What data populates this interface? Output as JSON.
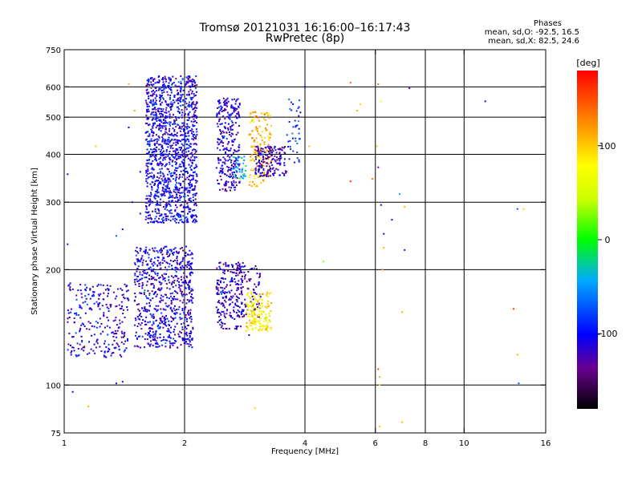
{
  "chart_data": {
    "type": "scatter",
    "title_line1": "Tromsø 20121031 16:16:00–16:17:43",
    "title_line2": "RwPretec (8p)",
    "stats": {
      "heading": "Phases",
      "line_o": "mean, sd,O: -92.5, 16.5",
      "line_x": "mean, sd,X:  82.5, 24.6"
    },
    "xlabel": "Frequency [MHz]",
    "ylabel": "Stationary phase Virtual Height [km]",
    "x_scale": "log",
    "y_scale": "log",
    "xlim": [
      1,
      16
    ],
    "ylim": [
      75,
      750
    ],
    "xticks": [
      1,
      2,
      4,
      6,
      8,
      10,
      16
    ],
    "xtick_labels": [
      "1",
      "2",
      "4",
      "6",
      "8",
      "10",
      "16"
    ],
    "yticks": [
      75,
      100,
      200,
      300,
      400,
      500,
      600,
      750
    ],
    "ytick_labels": [
      "75",
      "100",
      "200",
      "300",
      "400",
      "500",
      "600",
      "750"
    ],
    "grid_x": [
      2,
      4,
      6,
      8,
      10
    ],
    "grid_y": [
      100,
      200,
      300,
      400,
      500,
      600
    ],
    "grid": true,
    "colorbar": {
      "label": "[deg]",
      "range": [
        -180,
        180
      ],
      "ticks": [
        100,
        0,
        -100
      ],
      "tick_labels": [
        "100",
        "0",
        "-100"
      ]
    },
    "clusters": [
      {
        "f": [
          1.02,
          1.45
        ],
        "h": [
          118,
          185
        ],
        "phase": -110,
        "n": 260
      },
      {
        "f": [
          1.5,
          2.1
        ],
        "h": [
          125,
          230
        ],
        "phase": -110,
        "n": 700
      },
      {
        "f": [
          2.4,
          2.8
        ],
        "h": [
          140,
          210
        ],
        "phase": -115,
        "n": 200
      },
      {
        "f": [
          2.7,
          3.1
        ],
        "h": [
          150,
          205
        ],
        "phase": -125,
        "n": 90
      },
      {
        "f": [
          2.85,
          3.3
        ],
        "h": [
          138,
          175
        ],
        "phase": 85,
        "n": 160
      },
      {
        "f": [
          1.6,
          2.15
        ],
        "h": [
          265,
          640
        ],
        "phase": -105,
        "n": 1300
      },
      {
        "f": [
          2.4,
          2.75
        ],
        "h": [
          320,
          560
        ],
        "phase": -110,
        "n": 280
      },
      {
        "f": [
          2.9,
          3.3
        ],
        "h": [
          330,
          520
        ],
        "phase": 110,
        "n": 150
      },
      {
        "f": [
          3.0,
          3.6
        ],
        "h": [
          350,
          420
        ],
        "phase": -120,
        "n": 170
      },
      {
        "f": [
          2.65,
          2.85
        ],
        "h": [
          345,
          395
        ],
        "phase": -50,
        "n": 40
      },
      {
        "f": [
          3.6,
          3.9
        ],
        "h": [
          380,
          560
        ],
        "phase": -85,
        "n": 40
      }
    ],
    "scattered": [
      {
        "x": 1.45,
        "y": 610,
        "phase": 110
      },
      {
        "x": 1.2,
        "y": 420,
        "phase": 100
      },
      {
        "x": 1.45,
        "y": 470,
        "phase": -110
      },
      {
        "x": 1.5,
        "y": 520,
        "phase": 110
      },
      {
        "x": 1.65,
        "y": 600,
        "phase": 100
      },
      {
        "x": 5.2,
        "y": 615,
        "phase": 140
      },
      {
        "x": 6.1,
        "y": 610,
        "phase": 140
      },
      {
        "x": 7.3,
        "y": 595,
        "phase": -130
      },
      {
        "x": 6.2,
        "y": 550,
        "phase": 60
      },
      {
        "x": 5.4,
        "y": 520,
        "phase": 110
      },
      {
        "x": 5.5,
        "y": 540,
        "phase": 95
      },
      {
        "x": 11.3,
        "y": 550,
        "phase": -110
      },
      {
        "x": 6.05,
        "y": 420,
        "phase": 95
      },
      {
        "x": 6.1,
        "y": 370,
        "phase": -135
      },
      {
        "x": 5.2,
        "y": 340,
        "phase": 160
      },
      {
        "x": 5.9,
        "y": 345,
        "phase": 140
      },
      {
        "x": 6.9,
        "y": 315,
        "phase": -40
      },
      {
        "x": 6.2,
        "y": 295,
        "phase": -110
      },
      {
        "x": 7.1,
        "y": 292,
        "phase": 110
      },
      {
        "x": 6.6,
        "y": 270,
        "phase": -110
      },
      {
        "x": 6.3,
        "y": 248,
        "phase": -110
      },
      {
        "x": 7.1,
        "y": 225,
        "phase": -135
      },
      {
        "x": 4.45,
        "y": 210,
        "phase": 30
      },
      {
        "x": 6.3,
        "y": 228,
        "phase": 110
      },
      {
        "x": 13.6,
        "y": 288,
        "phase": -70
      },
      {
        "x": 14.1,
        "y": 288,
        "phase": 100
      },
      {
        "x": 6.25,
        "y": 200,
        "phase": 120
      },
      {
        "x": 13.3,
        "y": 158,
        "phase": 160
      },
      {
        "x": 7.0,
        "y": 155,
        "phase": 110
      },
      {
        "x": 13.6,
        "y": 120,
        "phase": 110
      },
      {
        "x": 6.1,
        "y": 110,
        "phase": 150
      },
      {
        "x": 6.15,
        "y": 105,
        "phase": 110
      },
      {
        "x": 6.15,
        "y": 100,
        "phase": 100
      },
      {
        "x": 13.7,
        "y": 101,
        "phase": -70
      },
      {
        "x": 7.0,
        "y": 80,
        "phase": 105
      },
      {
        "x": 6.15,
        "y": 78,
        "phase": 100
      },
      {
        "x": 3.0,
        "y": 87,
        "phase": 100
      },
      {
        "x": 1.15,
        "y": 88,
        "phase": 110
      },
      {
        "x": 1.05,
        "y": 96,
        "phase": -110
      },
      {
        "x": 1.35,
        "y": 101,
        "phase": -120
      },
      {
        "x": 1.4,
        "y": 102,
        "phase": -110
      },
      {
        "x": 1.02,
        "y": 233,
        "phase": -110
      },
      {
        "x": 1.02,
        "y": 355,
        "phase": -110
      },
      {
        "x": 1.35,
        "y": 245,
        "phase": -70
      },
      {
        "x": 1.4,
        "y": 255,
        "phase": -110
      },
      {
        "x": 1.48,
        "y": 300,
        "phase": -110
      },
      {
        "x": 1.55,
        "y": 280,
        "phase": -110
      },
      {
        "x": 1.55,
        "y": 360,
        "phase": -110
      },
      {
        "x": 4.0,
        "y": 600,
        "phase": -110
      },
      {
        "x": 4.1,
        "y": 420,
        "phase": 100
      },
      {
        "x": 2.7,
        "y": 140,
        "phase": -110
      },
      {
        "x": 2.9,
        "y": 135,
        "phase": -110
      }
    ]
  }
}
